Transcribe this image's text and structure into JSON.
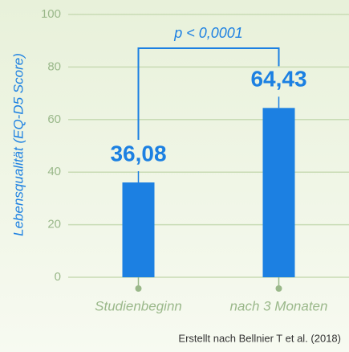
{
  "chart_data": {
    "type": "bar",
    "y_label": "Lebensqualität (EQ-D5 Score)",
    "categories": [
      "Studienbeginn",
      "nach 3 Monaten"
    ],
    "values": [
      36.08,
      64.43
    ],
    "value_labels": [
      "36,08",
      "64,43"
    ],
    "color": "#1c80e2",
    "ylim": [
      0,
      100
    ],
    "yticks": [
      0,
      20,
      40,
      60,
      80,
      100
    ],
    "grid": true,
    "annotation": "p < 0,0001",
    "source": "Erstellt nach Bellnier T et al. (2018)"
  }
}
